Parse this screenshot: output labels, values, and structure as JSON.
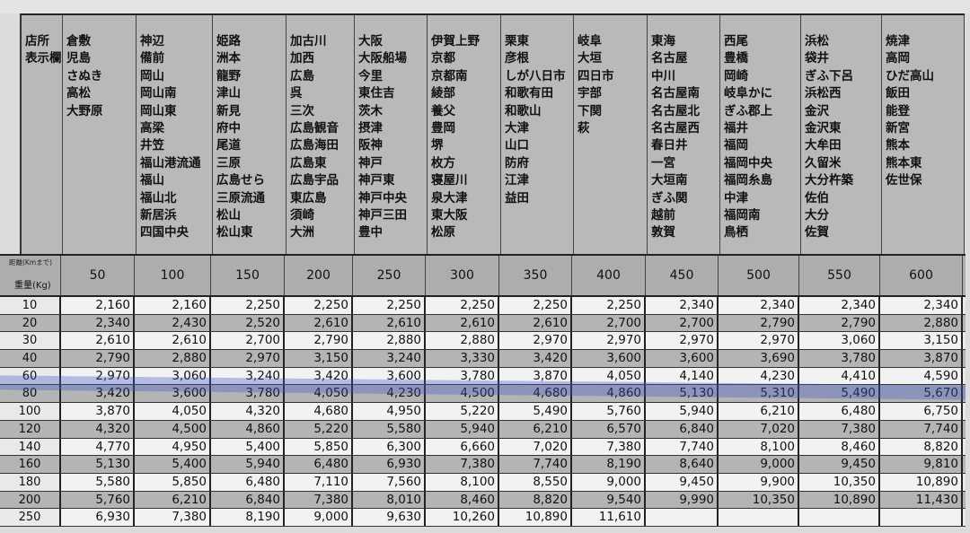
{
  "header": {
    "label_lines": [
      "店所",
      "表示欄"
    ],
    "store_columns": [
      [
        "倉敷",
        "児島",
        "さぬき",
        "高松",
        "大野原"
      ],
      [
        "神辺",
        "備前",
        "岡山",
        "岡山南",
        "岡山東",
        "高梁",
        "井笠",
        "福山港流通",
        "福山",
        "福山北",
        "新居浜",
        "四国中央"
      ],
      [
        "姫路",
        "洲本",
        "龍野",
        "津山",
        "新見",
        "府中",
        "尾道",
        "三原",
        "広島せら",
        "三原流通",
        "松山",
        "松山東"
      ],
      [
        "加古川",
        "加西",
        "広島",
        "呉",
        "三次",
        "広島観音",
        "広島海田",
        "広島東",
        "広島宇品",
        "東広島",
        "須崎",
        "大洲"
      ],
      [
        "大阪",
        "大阪船場",
        "今里",
        "東住吉",
        "茨木",
        "摂津",
        "阪神",
        "神戸",
        "神戸東",
        "神戸中央",
        "神戸三田",
        "豊中"
      ],
      [
        "伊賀上野",
        "京都",
        "京都南",
        "綾部",
        "養父",
        "豊岡",
        "堺",
        "枚方",
        "寝屋川",
        "泉大津",
        "東大阪",
        "松原"
      ],
      [
        "栗東",
        "彦根",
        "しが八日市",
        "和歌有田",
        "和歌山",
        "大津",
        "山口",
        "防府",
        "江津",
        "益田"
      ],
      [
        "岐阜",
        "大垣",
        "四日市",
        "宇部",
        "下関",
        "萩"
      ],
      [
        "東海",
        "名古屋",
        "中川",
        "名古屋南",
        "名古屋北",
        "名古屋西",
        "春日井",
        "一宮",
        "大垣南",
        "ぎふ関",
        "越前",
        "敦賀"
      ],
      [
        "西尾",
        "豊橋",
        "岡崎",
        "岐阜かに",
        "ぎふ郡上",
        "福井",
        "福岡",
        "福岡中央",
        "福岡糸島",
        "中津",
        "福岡南",
        "鳥栖"
      ],
      [
        "浜松",
        "袋井",
        "ぎふ下呂",
        "浜松西",
        "金沢",
        "金沢東",
        "大牟田",
        "久留米",
        "大分杵築",
        "佐伯",
        "大分",
        "佐賀"
      ],
      [
        "焼津",
        "高岡",
        "ひだ高山",
        "飯田",
        "能登",
        "新宮",
        "熊本",
        "熊本東",
        "佐世保"
      ]
    ]
  },
  "corner": {
    "distance_label": "距離(Kmまで)",
    "weight_label": "重量(Kg)"
  },
  "distances": [
    "50",
    "100",
    "150",
    "200",
    "250",
    "300",
    "350",
    "400",
    "450",
    "500",
    "550",
    "600"
  ],
  "rows": [
    {
      "weight": "10",
      "values": [
        "2,160",
        "2,160",
        "2,250",
        "2,250",
        "2,250",
        "2,250",
        "2,250",
        "2,250",
        "2,340",
        "2,340",
        "2,340",
        "2,340"
      ]
    },
    {
      "weight": "20",
      "values": [
        "2,340",
        "2,430",
        "2,520",
        "2,610",
        "2,610",
        "2,610",
        "2,610",
        "2,700",
        "2,700",
        "2,790",
        "2,790",
        "2,880"
      ]
    },
    {
      "weight": "30",
      "values": [
        "2,610",
        "2,610",
        "2,700",
        "2,790",
        "2,880",
        "2,880",
        "2,970",
        "2,970",
        "2,970",
        "2,970",
        "3,060",
        "3,150"
      ]
    },
    {
      "weight": "40",
      "values": [
        "2,790",
        "2,880",
        "2,970",
        "3,150",
        "3,240",
        "3,330",
        "3,420",
        "3,600",
        "3,600",
        "3,690",
        "3,780",
        "3,870"
      ]
    },
    {
      "weight": "60",
      "values": [
        "2,970",
        "3,060",
        "3,240",
        "3,420",
        "3,600",
        "3,780",
        "3,870",
        "4,050",
        "4,140",
        "4,230",
        "4,410",
        "4,590"
      ]
    },
    {
      "weight": "80",
      "values": [
        "3,420",
        "3,600",
        "3,780",
        "4,050",
        "4,230",
        "4,500",
        "4,680",
        "4,860",
        "5,130",
        "5,310",
        "5,490",
        "5,670"
      ]
    },
    {
      "weight": "100",
      "values": [
        "3,870",
        "4,050",
        "4,320",
        "4,680",
        "4,950",
        "5,220",
        "5,490",
        "5,760",
        "5,940",
        "6,210",
        "6,480",
        "6,750"
      ]
    },
    {
      "weight": "120",
      "values": [
        "4,320",
        "4,500",
        "4,860",
        "5,220",
        "5,580",
        "5,940",
        "6,210",
        "6,570",
        "6,840",
        "7,020",
        "7,380",
        "7,740"
      ]
    },
    {
      "weight": "140",
      "values": [
        "4,770",
        "4,950",
        "5,400",
        "5,850",
        "6,300",
        "6,660",
        "7,020",
        "7,380",
        "7,740",
        "8,100",
        "8,460",
        "8,820"
      ]
    },
    {
      "weight": "160",
      "values": [
        "5,130",
        "5,400",
        "5,940",
        "6,480",
        "6,930",
        "7,380",
        "7,740",
        "8,190",
        "8,640",
        "9,000",
        "9,450",
        "9,810"
      ]
    },
    {
      "weight": "180",
      "values": [
        "5,580",
        "5,850",
        "6,480",
        "7,110",
        "7,560",
        "8,100",
        "8,550",
        "9,000",
        "9,450",
        "9,900",
        "10,350",
        "10,890"
      ]
    },
    {
      "weight": "200",
      "values": [
        "5,760",
        "6,210",
        "6,840",
        "7,380",
        "8,010",
        "8,460",
        "8,820",
        "9,540",
        "9,990",
        "10,350",
        "10,890",
        "11,430"
      ]
    },
    {
      "weight": "250",
      "values": [
        "6,930",
        "7,380",
        "8,190",
        "9,000",
        "9,630",
        "10,260",
        "10,890",
        "11,610",
        "",
        "",
        "",
        ""
      ]
    }
  ],
  "highlight": {
    "row_weight": "80",
    "color": "#4a5ad0"
  }
}
